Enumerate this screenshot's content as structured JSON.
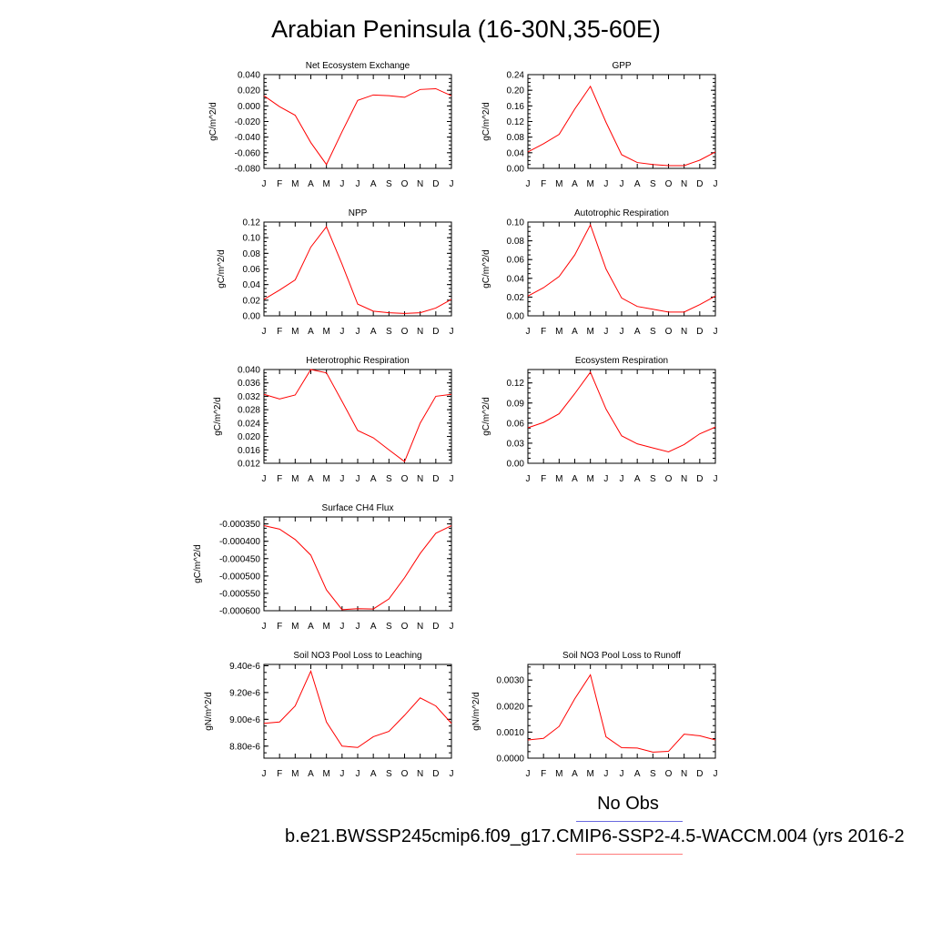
{
  "page": {
    "title": "Arabian Peninsula (16-30N,35-60E)"
  },
  "legend": {
    "obs_label": "No Obs",
    "case_label": "b.e21.BWSSP245cmip6.f09_g17.CMIP6-SSP2-4.5-WACCM.004 (yrs 2016-2",
    "obs_color": "#6a6adf",
    "case_color": "#ff7a7a"
  },
  "chart_data": [
    {
      "type": "line",
      "title": "Net Ecosystem Exchange",
      "ylabel": "gC/m^2/d",
      "x": [
        "J",
        "F",
        "M",
        "A",
        "M",
        "J",
        "J",
        "A",
        "S",
        "O",
        "N",
        "D",
        "J"
      ],
      "ylim": [
        -0.08,
        0.04
      ],
      "yticks": [
        -0.08,
        -0.06,
        -0.04,
        -0.02,
        0.0,
        0.02,
        0.04
      ],
      "ytick_labels": [
        "-0.080",
        "-0.060",
        "-0.040",
        "-0.020",
        "0.000",
        "0.020",
        "0.040"
      ],
      "series": [
        {
          "color": "#ff0000",
          "values": [
            0.013,
            -0.001,
            -0.012,
            -0.047,
            -0.075,
            -0.033,
            0.007,
            0.014,
            0.013,
            0.011,
            0.021,
            0.022,
            0.013
          ]
        }
      ]
    },
    {
      "type": "line",
      "title": "GPP",
      "ylabel": "gC/m^2/d",
      "x": [
        "J",
        "F",
        "M",
        "A",
        "M",
        "J",
        "J",
        "A",
        "S",
        "O",
        "N",
        "D",
        "J"
      ],
      "ylim": [
        0.0,
        0.24
      ],
      "yticks": [
        0.0,
        0.04,
        0.08,
        0.12,
        0.16,
        0.2,
        0.24
      ],
      "ytick_labels": [
        "0.00",
        "0.04",
        "0.08",
        "0.12",
        "0.16",
        "0.20",
        "0.24"
      ],
      "series": [
        {
          "color": "#ff0000",
          "values": [
            0.042,
            0.063,
            0.087,
            0.152,
            0.21,
            0.118,
            0.035,
            0.015,
            0.01,
            0.007,
            0.007,
            0.021,
            0.042
          ]
        }
      ]
    },
    {
      "type": "line",
      "title": "NPP",
      "ylabel": "gC/m^2/d",
      "x": [
        "J",
        "F",
        "M",
        "A",
        "M",
        "J",
        "J",
        "A",
        "S",
        "O",
        "N",
        "D",
        "J"
      ],
      "ylim": [
        0.0,
        0.12
      ],
      "yticks": [
        0.0,
        0.02,
        0.04,
        0.06,
        0.08,
        0.1,
        0.12
      ],
      "ytick_labels": [
        "0.00",
        "0.02",
        "0.04",
        "0.06",
        "0.08",
        "0.10",
        "0.12"
      ],
      "series": [
        {
          "color": "#ff0000",
          "values": [
            0.021,
            0.033,
            0.046,
            0.088,
            0.114,
            0.066,
            0.015,
            0.006,
            0.004,
            0.003,
            0.004,
            0.01,
            0.021
          ]
        }
      ]
    },
    {
      "type": "line",
      "title": "Autotrophic Respiration",
      "ylabel": "gC/m^2/d",
      "x": [
        "J",
        "F",
        "M",
        "A",
        "M",
        "J",
        "J",
        "A",
        "S",
        "O",
        "N",
        "D",
        "J"
      ],
      "ylim": [
        0.0,
        0.1
      ],
      "yticks": [
        0.0,
        0.02,
        0.04,
        0.06,
        0.08,
        0.1
      ],
      "ytick_labels": [
        "0.00",
        "0.02",
        "0.04",
        "0.06",
        "0.08",
        "0.10"
      ],
      "series": [
        {
          "color": "#ff0000",
          "values": [
            0.021,
            0.03,
            0.042,
            0.065,
            0.097,
            0.05,
            0.019,
            0.01,
            0.007,
            0.004,
            0.004,
            0.012,
            0.021
          ]
        }
      ]
    },
    {
      "type": "line",
      "title": "Heterotrophic Respiration",
      "ylabel": "gC/m^2/d",
      "x": [
        "J",
        "F",
        "M",
        "A",
        "M",
        "J",
        "J",
        "A",
        "S",
        "O",
        "N",
        "D",
        "J"
      ],
      "ylim": [
        0.012,
        0.04
      ],
      "yticks": [
        0.012,
        0.016,
        0.02,
        0.024,
        0.028,
        0.032,
        0.036,
        0.04
      ],
      "ytick_labels": [
        "0.012",
        "0.016",
        "0.020",
        "0.024",
        "0.028",
        "0.032",
        "0.036",
        "0.040"
      ],
      "series": [
        {
          "color": "#ff0000",
          "values": [
            0.0326,
            0.0312,
            0.0324,
            0.04,
            0.039,
            0.0305,
            0.0218,
            0.0196,
            0.016,
            0.0125,
            0.024,
            0.032,
            0.0326
          ]
        }
      ]
    },
    {
      "type": "line",
      "title": "Ecosystem Respiration",
      "ylabel": "gC/m^2/d",
      "x": [
        "J",
        "F",
        "M",
        "A",
        "M",
        "J",
        "J",
        "A",
        "S",
        "O",
        "N",
        "D",
        "J"
      ],
      "ylim": [
        0.0,
        0.14
      ],
      "yticks": [
        0.0,
        0.03,
        0.06,
        0.09,
        0.12
      ],
      "ytick_labels": [
        "0.00",
        "0.03",
        "0.06",
        "0.09",
        "0.12"
      ],
      "series": [
        {
          "color": "#ff0000",
          "values": [
            0.053,
            0.061,
            0.074,
            0.104,
            0.136,
            0.081,
            0.041,
            0.029,
            0.023,
            0.017,
            0.028,
            0.044,
            0.054
          ]
        }
      ]
    },
    {
      "type": "line",
      "title": "Surface CH4 Flux",
      "ylabel": "gC/m^2/d",
      "x": [
        "J",
        "F",
        "M",
        "A",
        "M",
        "J",
        "J",
        "A",
        "S",
        "O",
        "N",
        "D",
        "J"
      ],
      "ylim": [
        -0.0006,
        -0.00033
      ],
      "yticks": [
        -0.0006,
        -0.00055,
        -0.0005,
        -0.00045,
        -0.0004,
        -0.00035
      ],
      "ytick_labels": [
        "-0.000600",
        "-0.000550",
        "-0.000500",
        "-0.000450",
        "-0.000400",
        "-0.000350"
      ],
      "series": [
        {
          "color": "#ff0000",
          "values": [
            -0.000355,
            -0.000365,
            -0.000395,
            -0.00044,
            -0.00054,
            -0.000597,
            -0.000594,
            -0.000595,
            -0.000566,
            -0.000505,
            -0.000435,
            -0.000377,
            -0.000355
          ]
        }
      ]
    },
    {
      "type": "line",
      "title": "Soil NO3 Pool Loss to Leaching",
      "ylabel": "gN/m^2/d",
      "x": [
        "J",
        "F",
        "M",
        "A",
        "M",
        "J",
        "J",
        "A",
        "S",
        "O",
        "N",
        "D",
        "J"
      ],
      "ylim": [
        8.71e-06,
        9.41e-06
      ],
      "yticks": [
        8.8e-06,
        9e-06,
        9.2e-06,
        9.4e-06
      ],
      "ytick_labels": [
        "8.80e-6",
        "9.00e-6",
        "9.20e-6",
        "9.40e-6"
      ],
      "series": [
        {
          "color": "#ff0000",
          "values": [
            8.97e-06,
            8.98e-06,
            9.1e-06,
            9.36e-06,
            8.98e-06,
            8.8e-06,
            8.79e-06,
            8.87e-06,
            8.91e-06,
            9.03e-06,
            9.16e-06,
            9.1e-06,
            8.97e-06
          ]
        }
      ]
    },
    {
      "type": "line",
      "title": "Soil NO3 Pool Loss to Runoff",
      "ylabel": "gN/m^2/d",
      "x": [
        "J",
        "F",
        "M",
        "A",
        "M",
        "J",
        "J",
        "A",
        "S",
        "O",
        "N",
        "D",
        "J"
      ],
      "ylim": [
        0.0,
        0.0036
      ],
      "yticks": [
        0.0,
        0.001,
        0.002,
        0.003
      ],
      "ytick_labels": [
        "0.0000",
        "0.0010",
        "0.0020",
        "0.0030"
      ],
      "series": [
        {
          "color": "#ff0000",
          "values": [
            0.0007,
            0.00076,
            0.00122,
            0.00228,
            0.0032,
            0.00082,
            0.0004,
            0.00039,
            0.00023,
            0.00026,
            0.00092,
            0.00086,
            0.0007
          ]
        }
      ]
    }
  ]
}
